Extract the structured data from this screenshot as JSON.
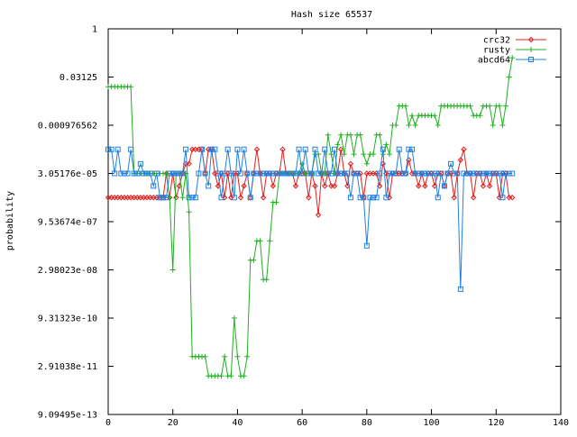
{
  "chart_data": {
    "type": "line",
    "title": "Hash size 65537",
    "xlabel": "",
    "ylabel": "probability",
    "xlim": [
      0,
      140
    ],
    "xticks": [
      0,
      20,
      40,
      60,
      80,
      100,
      120,
      140
    ],
    "y_scale": "log2",
    "ylim_log2": [
      -40,
      0
    ],
    "yticks": [
      {
        "label": "1",
        "log2": 0
      },
      {
        "label": "0.03125",
        "log2": -5
      },
      {
        "label": "0.000976562",
        "log2": -10
      },
      {
        "label": "3.05176e-05",
        "log2": -15
      },
      {
        "label": "9.53674e-07",
        "log2": -20
      },
      {
        "label": "2.98023e-08",
        "log2": -25
      },
      {
        "label": "9.31323e-10",
        "log2": -30
      },
      {
        "label": "2.91038e-11",
        "log2": -35
      },
      {
        "label": "9.09495e-13",
        "log2": -40
      }
    ],
    "grid": false,
    "legend": "top-right",
    "series": [
      {
        "name": "crc32",
        "color": "#e02020",
        "marker": "diamond",
        "x": [
          0,
          1,
          2,
          3,
          4,
          5,
          6,
          7,
          8,
          9,
          10,
          11,
          12,
          13,
          14,
          15,
          16,
          17,
          18,
          19,
          20,
          21,
          22,
          23,
          24,
          25,
          26,
          27,
          28,
          29,
          30,
          31,
          32,
          33,
          34,
          35,
          36,
          37,
          38,
          39,
          40,
          41,
          42,
          43,
          44,
          45,
          46,
          47,
          48,
          49,
          50,
          51,
          52,
          53,
          54,
          55,
          56,
          57,
          58,
          59,
          60,
          61,
          62,
          63,
          64,
          65,
          66,
          67,
          68,
          69,
          70,
          71,
          72,
          73,
          74,
          75,
          76,
          77,
          78,
          79,
          80,
          81,
          82,
          83,
          84,
          85,
          86,
          87,
          88,
          89,
          90,
          91,
          92,
          93,
          94,
          95,
          96,
          97,
          98,
          99,
          100,
          101,
          102,
          103,
          104,
          105,
          106,
          107,
          108,
          109,
          110,
          111,
          112,
          113,
          114,
          115,
          116,
          117,
          118,
          119,
          120,
          121,
          122,
          123,
          124,
          125
        ],
        "y": [
          -17.5,
          -17.5,
          -17.5,
          -17.5,
          -17.5,
          -17.5,
          -17.5,
          -17.5,
          -17.5,
          -17.5,
          -17.5,
          -17.5,
          -17.5,
          -17.5,
          -17.5,
          -17.5,
          -17.5,
          -17.5,
          -15,
          -17.5,
          -15,
          -17.5,
          -16.3,
          -15,
          -14,
          -14,
          -12.5,
          -12.5,
          -12.5,
          -12.5,
          -15,
          -12.5,
          -12.5,
          -15,
          -16.3,
          -15,
          -17.5,
          -15,
          -17.5,
          -15,
          -15,
          -17.5,
          -16.3,
          -15,
          -17.5,
          -15,
          -12.5,
          -15,
          -17.5,
          -15,
          -15,
          -16.3,
          -15,
          -15,
          -12.5,
          -15,
          -15,
          -15,
          -16.3,
          -15,
          -15,
          -15,
          -17.5,
          -15,
          -16.3,
          -19.3,
          -15,
          -16.3,
          -15,
          -16.3,
          -16.3,
          -15,
          -12.5,
          -15,
          -16.3,
          -14,
          -15,
          -15,
          -15,
          -17.5,
          -15,
          -15,
          -15,
          -15,
          -16.3,
          -14,
          -15,
          -17.5,
          -15,
          -15,
          -15,
          -15,
          -15,
          -13.6,
          -15,
          -15,
          -16.3,
          -15,
          -16.3,
          -15,
          -15,
          -16.3,
          -15,
          -15,
          -16.3,
          -15,
          -15,
          -17.5,
          -15,
          -13.6,
          -12.5,
          -15,
          -15,
          -17.5,
          -15,
          -15,
          -16.3,
          -15,
          -16.3,
          -15,
          -15,
          -17.5,
          -15,
          -15,
          -17.5,
          -17.5
        ]
      },
      {
        "name": "rusty",
        "color": "#20b020",
        "marker": "plus",
        "x": [
          0,
          1,
          2,
          3,
          4,
          5,
          6,
          7,
          8,
          9,
          10,
          11,
          12,
          13,
          14,
          15,
          16,
          17,
          18,
          19,
          20,
          21,
          22,
          23,
          24,
          25,
          26,
          27,
          28,
          29,
          30,
          31,
          32,
          33,
          34,
          35,
          36,
          37,
          38,
          39,
          40,
          41,
          42,
          43,
          44,
          45,
          46,
          47,
          48,
          49,
          50,
          51,
          52,
          53,
          54,
          55,
          56,
          57,
          58,
          59,
          60,
          61,
          62,
          63,
          64,
          65,
          66,
          67,
          68,
          69,
          70,
          71,
          72,
          73,
          74,
          75,
          76,
          77,
          78,
          79,
          80,
          81,
          82,
          83,
          84,
          85,
          86,
          87,
          88,
          89,
          90,
          91,
          92,
          93,
          94,
          95,
          96,
          97,
          98,
          99,
          100,
          101,
          102,
          103,
          104,
          105,
          106,
          107,
          108,
          109,
          110,
          111,
          112,
          113,
          114,
          115,
          116,
          117,
          118,
          119,
          120,
          121,
          122,
          123,
          124,
          125
        ],
        "y": [
          -6,
          -6,
          -6,
          -6,
          -6,
          -6,
          -6,
          -6,
          -15,
          -15,
          -15,
          -15,
          -15,
          -15,
          -15,
          -15,
          -15,
          -15,
          -15,
          -17.5,
          -25,
          -15,
          -15,
          -17.5,
          -15,
          -19,
          -34,
          -34,
          -34,
          -34,
          -34,
          -36,
          -36,
          -36,
          -36,
          -36,
          -34,
          -36,
          -36,
          -30,
          -34,
          -36,
          -36,
          -34,
          -24,
          -24,
          -22,
          -22,
          -26,
          -26,
          -22,
          -18,
          -18,
          -15,
          -15,
          -15,
          -15,
          -15,
          -15,
          -15,
          -14,
          -15,
          -15,
          -15,
          -13,
          -13,
          -15,
          -15,
          -11,
          -13,
          -15,
          -12,
          -11,
          -13,
          -11,
          -11,
          -13,
          -11,
          -11,
          -13,
          -14,
          -13,
          -13,
          -11,
          -11,
          -13,
          -12,
          -13,
          -10,
          -10,
          -8,
          -8,
          -8,
          -10,
          -9,
          -10,
          -9,
          -9,
          -9,
          -9,
          -9,
          -9,
          -10,
          -8,
          -8,
          -8,
          -8,
          -8,
          -8,
          -8,
          -8,
          -8,
          -8,
          -9,
          -9,
          -9,
          -8,
          -8,
          -8,
          -10,
          -8,
          -8,
          -10,
          -8,
          -5,
          -3
        ]
      },
      {
        "name": "abcd64",
        "color": "#2080e0",
        "marker": "square",
        "x": [
          0,
          1,
          2,
          3,
          4,
          5,
          6,
          7,
          8,
          9,
          10,
          11,
          12,
          13,
          14,
          15,
          16,
          17,
          18,
          19,
          20,
          21,
          22,
          23,
          24,
          25,
          26,
          27,
          28,
          29,
          30,
          31,
          32,
          33,
          34,
          35,
          36,
          37,
          38,
          39,
          40,
          41,
          42,
          43,
          44,
          45,
          46,
          47,
          48,
          49,
          50,
          51,
          52,
          53,
          54,
          55,
          56,
          57,
          58,
          59,
          60,
          61,
          62,
          63,
          64,
          65,
          66,
          67,
          68,
          69,
          70,
          71,
          72,
          73,
          74,
          75,
          76,
          77,
          78,
          79,
          80,
          81,
          82,
          83,
          84,
          85,
          86,
          87,
          88,
          89,
          90,
          91,
          92,
          93,
          94,
          95,
          96,
          97,
          98,
          99,
          100,
          101,
          102,
          103,
          104,
          105,
          106,
          107,
          108,
          109,
          110,
          111,
          112,
          113,
          114,
          115,
          116,
          117,
          118,
          119,
          120,
          121,
          122,
          123,
          124,
          125
        ],
        "y": [
          -12.5,
          -12.5,
          -15,
          -12.5,
          -15,
          -15,
          -15,
          -12.5,
          -15,
          -15,
          -14,
          -15,
          -15,
          -15,
          -16.3,
          -15,
          -17.5,
          -17.5,
          -17.5,
          -15,
          -15,
          -15,
          -15,
          -15,
          -12.5,
          -17.5,
          -17.5,
          -17.5,
          -15,
          -12.5,
          -15,
          -16.3,
          -12.5,
          -12.5,
          -15,
          -17.5,
          -15,
          -12.5,
          -15,
          -17.5,
          -12.5,
          -15,
          -12.5,
          -15,
          -17.5,
          -15,
          -15,
          -15,
          -15,
          -15,
          -15,
          -15,
          -15,
          -15,
          -15,
          -15,
          -15,
          -15,
          -15,
          -12.5,
          -15,
          -12.5,
          -15,
          -15,
          -12.5,
          -15,
          -15,
          -12.5,
          -15,
          -15,
          -12.5,
          -15,
          -15,
          -15,
          -15,
          -17.5,
          -15,
          -15,
          -17.5,
          -17.5,
          -22.5,
          -17.5,
          -17.5,
          -17.5,
          -15,
          -12.5,
          -17.5,
          -15,
          -15,
          -15,
          -12.5,
          -15,
          -15,
          -12.5,
          -12.5,
          -15,
          -15,
          -15,
          -15,
          -15,
          -15,
          -15,
          -17.5,
          -15,
          -16.3,
          -15,
          -14,
          -15,
          -15,
          -27,
          -15,
          -15,
          -15,
          -15,
          -15,
          -15,
          -15,
          -15,
          -15,
          -15,
          -15,
          -15,
          -17.5,
          -15,
          -15,
          -15
        ]
      }
    ]
  }
}
